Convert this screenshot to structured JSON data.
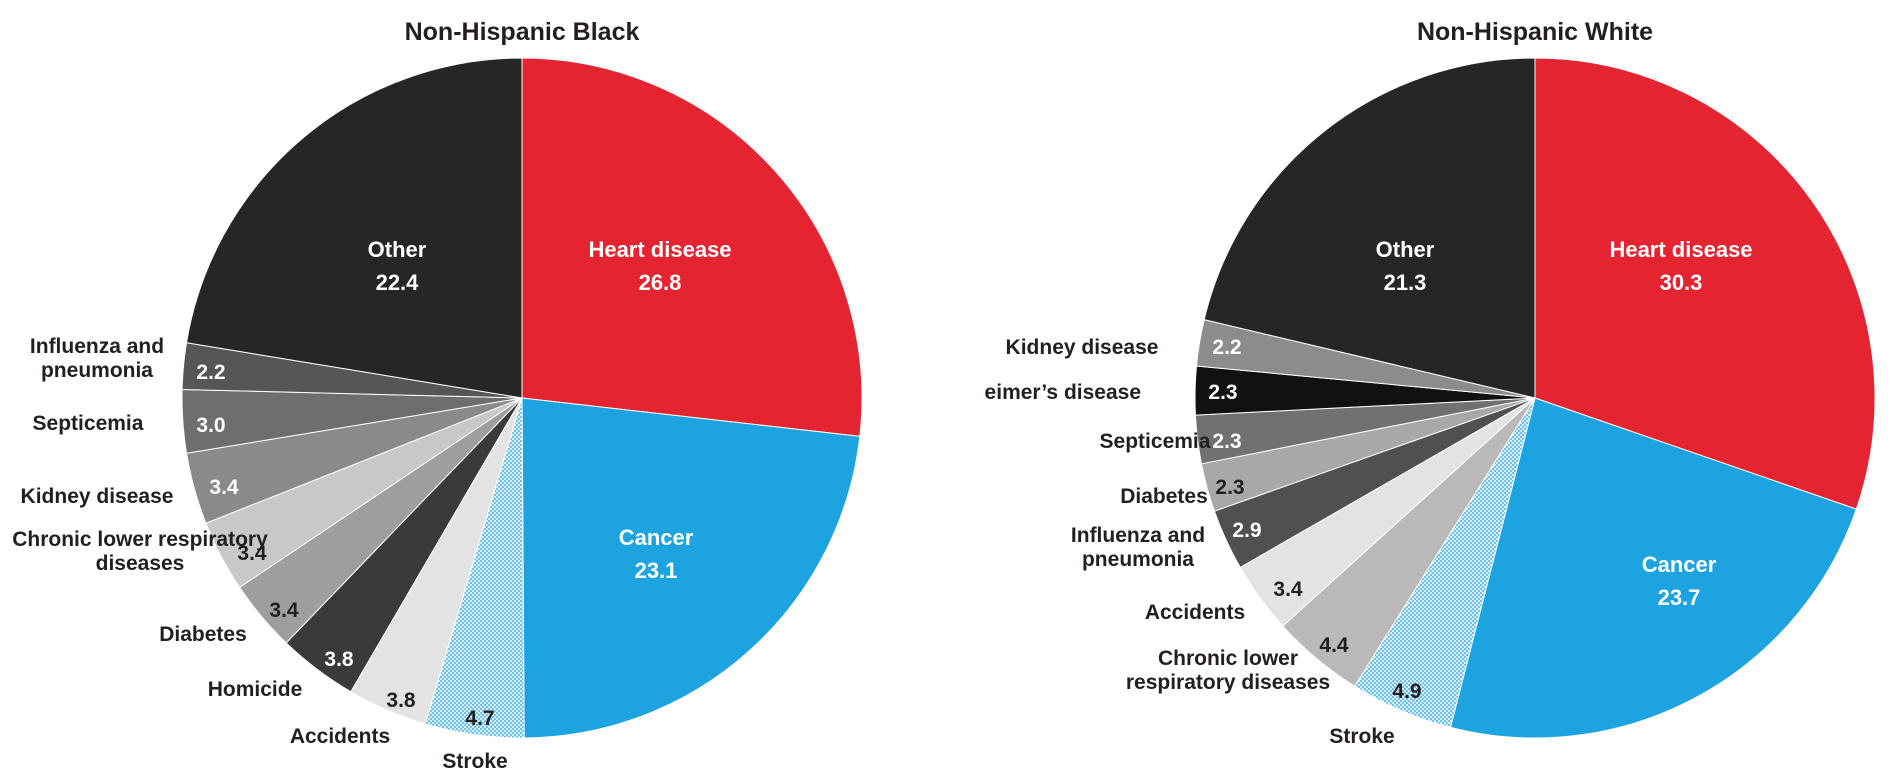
{
  "chart_data": [
    {
      "type": "pie",
      "title": "Non-Hispanic Black",
      "slices": [
        {
          "label": "Heart disease",
          "value": 26.8,
          "value_label": "26.8",
          "color": "#e42431"
        },
        {
          "label": "Cancer",
          "value": 23.1,
          "value_label": "23.1",
          "color": "#1ea3e1"
        },
        {
          "label": "Stroke",
          "value": 4.7,
          "value_label": "4.7",
          "color": "#a9d4ec",
          "pattern": "dotted"
        },
        {
          "label": "Accidents",
          "value": 3.8,
          "value_label": "3.8",
          "color": "#e3e3e3"
        },
        {
          "label": "Homicide",
          "value": 3.8,
          "value_label": "3.8",
          "color": "#3a3a3a"
        },
        {
          "label": "Diabetes",
          "value": 3.4,
          "value_label": "3.4",
          "color": "#9e9e9e"
        },
        {
          "label": "Chronic lower respiratory diseases",
          "value": 3.4,
          "value_label": "3.4",
          "color": "#c8c8c8"
        },
        {
          "label": "Kidney disease",
          "value": 3.4,
          "value_label": "3.4",
          "color": "#8a8a8a"
        },
        {
          "label": "Septicemia",
          "value": 3.0,
          "value_label": "3.0",
          "color": "#6e6e6e"
        },
        {
          "label": "Influenza and pneumonia",
          "value": 2.2,
          "value_label": "2.2",
          "color": "#565656"
        },
        {
          "label": "Other",
          "value": 22.4,
          "value_label": "22.4",
          "color": "#262626"
        }
      ]
    },
    {
      "type": "pie",
      "title": "Non-Hispanic White",
      "slices": [
        {
          "label": "Heart disease",
          "value": 30.3,
          "value_label": "30.3",
          "color": "#e42431"
        },
        {
          "label": "Cancer",
          "value": 23.7,
          "value_label": "23.7",
          "color": "#1ea3e1"
        },
        {
          "label": "Stroke",
          "value": 4.9,
          "value_label": "4.9",
          "color": "#a9d4ec",
          "pattern": "dotted"
        },
        {
          "label": "Chronic lower respiratory diseases",
          "value": 4.4,
          "value_label": "4.4",
          "color": "#b9b9b9"
        },
        {
          "label": "Accidents",
          "value": 3.4,
          "value_label": "3.4",
          "color": "#e3e3e3"
        },
        {
          "label": "Influenza and pneumonia",
          "value": 2.9,
          "value_label": "2.9",
          "color": "#505050"
        },
        {
          "label": "Diabetes",
          "value": 2.3,
          "value_label": "2.3",
          "color": "#a8a8a8"
        },
        {
          "label": "Septicemia",
          "value": 2.3,
          "value_label": "2.3",
          "color": "#717171"
        },
        {
          "label": "lzheimer’s disease",
          "value": 2.3,
          "value_label": "2.3",
          "color": "#111111"
        },
        {
          "label": "Kidney disease",
          "value": 2.2,
          "value_label": "2.2",
          "color": "#8c8c8c"
        },
        {
          "label": "Other",
          "value": 21.3,
          "value_label": "21.3",
          "color": "#262626"
        }
      ]
    }
  ]
}
